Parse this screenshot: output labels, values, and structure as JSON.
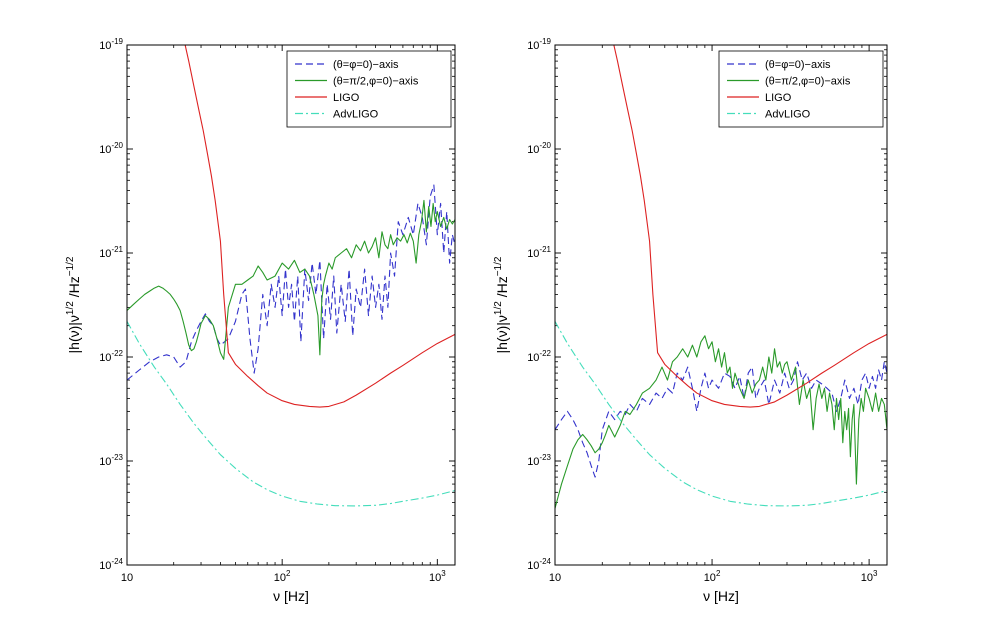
{
  "chart_data": [
    {
      "type": "line",
      "xscale": "log",
      "yscale": "log",
      "xlim": [
        10,
        1300
      ],
      "ylim": [
        1e-24,
        1e-19
      ],
      "xlabel": "ν [Hz]",
      "ylabel": "|h(ν)|ν^1/2 /Hz^−1/2",
      "xtick_labels": [
        "10",
        "10^2",
        "10^3"
      ],
      "ytick_labels": [
        "10^-19",
        "10^-20",
        "10^-21",
        "10^-22",
        "10^-23",
        "10^-24"
      ],
      "legend_position": "top-right",
      "series": [
        {
          "name": "(θ=φ=0)−axis",
          "color": "#3333cc",
          "style": "dashed",
          "x": [
            10,
            12,
            14,
            16,
            18,
            20,
            22,
            24,
            26,
            28,
            30,
            32,
            34,
            36,
            38,
            40,
            45,
            50,
            55,
            58,
            62,
            66,
            70,
            75,
            80,
            85,
            90,
            95,
            100,
            105,
            110,
            115,
            120,
            126,
            132,
            140,
            148,
            156,
            165,
            175,
            185,
            195,
            205,
            215,
            225,
            240,
            255,
            270,
            285,
            300,
            320,
            340,
            360,
            380,
            400,
            420,
            440,
            460,
            480,
            500,
            530,
            560,
            600,
            650,
            700,
            750,
            800,
            850,
            900,
            950,
            1000,
            1050,
            1100,
            1150,
            1200,
            1250,
            1300
          ],
          "y": [
            6e-23,
            7.5e-23,
            9e-23,
            1e-22,
            1.05e-22,
            1e-22,
            8e-23,
            9e-23,
            1.4e-22,
            1.8e-22,
            2.2e-22,
            2.6e-22,
            2.2e-22,
            2e-22,
            1.5e-22,
            1.3e-22,
            1.5e-22,
            2.2e-22,
            4e-22,
            4.5e-22,
            1.5e-22,
            7e-23,
            1.2e-22,
            4e-22,
            2e-22,
            5e-22,
            3e-22,
            6e-22,
            2.5e-22,
            7e-22,
            3e-22,
            5e-22,
            2.2e-22,
            6e-22,
            1.4e-22,
            7e-22,
            3.5e-22,
            8e-22,
            4e-22,
            8.5e-22,
            1.5e-22,
            5e-22,
            2.3e-22,
            6e-22,
            1.7e-22,
            5e-22,
            2.2e-22,
            7e-22,
            1.6e-22,
            4.5e-22,
            3e-22,
            7e-22,
            2.5e-22,
            6e-22,
            3e-22,
            5e-22,
            2.3e-22,
            6e-22,
            3e-22,
            1e-21,
            6e-22,
            2e-21,
            1.5e-21,
            2.2e-21,
            1.5e-21,
            3e-21,
            2.2e-21,
            1.2e-21,
            3.5e-21,
            4.5e-21,
            1.5e-21,
            3e-21,
            1e-21,
            2.5e-21,
            8e-22,
            1.5e-21,
            1.2e-21
          ]
        },
        {
          "name": "(θ=π/2,φ=0)−axis",
          "color": "#2a9a2a",
          "style": "solid",
          "x": [
            10,
            11,
            12,
            13,
            14,
            15,
            16,
            17,
            18,
            19,
            20,
            21,
            22,
            23,
            24,
            25,
            26,
            27,
            28,
            29,
            30,
            32,
            34,
            36,
            38,
            40,
            42,
            45,
            50,
            55,
            60,
            65,
            70,
            75,
            80,
            90,
            100,
            110,
            120,
            130,
            140,
            150,
            160,
            170,
            175,
            180,
            185,
            190,
            200,
            210,
            220,
            240,
            260,
            280,
            300,
            320,
            340,
            360,
            380,
            400,
            420,
            440,
            460,
            480,
            500,
            520,
            550,
            580,
            610,
            640,
            670,
            700,
            730,
            760,
            790,
            820,
            850,
            880,
            910,
            940,
            970,
            1000,
            1050,
            1100,
            1150,
            1200,
            1250,
            1300
          ],
          "y": [
            2.8e-22,
            3.2e-22,
            3.6e-22,
            4e-22,
            4.3e-22,
            4.6e-22,
            4.8e-22,
            4.6e-22,
            4.3e-22,
            4e-22,
            3.6e-22,
            3.2e-22,
            2.8e-22,
            2.2e-22,
            1.7e-22,
            1.3e-22,
            1.15e-22,
            1.2e-22,
            1.4e-22,
            1.7e-22,
            2.1e-22,
            2.5e-22,
            2.3e-22,
            2e-22,
            1.5e-22,
            1.1e-22,
            9.5e-23,
            3e-22,
            5e-22,
            5e-22,
            5.5e-22,
            6e-22,
            7.5e-22,
            6.5e-22,
            5.5e-22,
            6e-22,
            8e-22,
            7e-22,
            8.5e-22,
            6.5e-22,
            7e-22,
            6e-22,
            4e-22,
            2.5e-22,
            1.05e-22,
            3.5e-22,
            5e-22,
            6e-22,
            8e-22,
            7e-22,
            9e-22,
            1e-21,
            1.1e-21,
            9e-22,
            1.2e-21,
            1.05e-21,
            1.3e-21,
            1e-21,
            1.15e-21,
            1.4e-21,
            9e-22,
            1.6e-21,
            1.2e-21,
            1.1e-21,
            1.5e-21,
            1.2e-21,
            1.4e-21,
            1.3e-21,
            1.5e-21,
            1.25e-21,
            1.55e-21,
            1.3e-21,
            8e-22,
            1.5e-21,
            2e-21,
            3.2e-21,
            1.6e-21,
            2.8e-21,
            1.8e-21,
            3e-21,
            2e-21,
            2.5e-21,
            1.8e-21,
            2.2e-21,
            1.7e-21,
            2.1e-21,
            1.9e-21,
            2.1e-21
          ]
        },
        {
          "name": "LIGO",
          "color": "#dd2222",
          "style": "solid",
          "x": [
            23.7,
            25,
            27,
            29,
            31,
            33,
            35,
            37,
            40,
            42,
            45,
            50,
            60,
            70,
            80,
            100,
            120,
            150,
            175,
            200,
            250,
            300,
            400,
            500,
            600,
            800,
            1000,
            1300
          ],
          "y": [
            1e-19,
            7e-20,
            4e-20,
            2.4e-20,
            1.5e-20,
            9e-21,
            5.5e-21,
            3.2e-21,
            1.3e-21,
            4e-22,
            1.1e-22,
            8.5e-23,
            6.5e-23,
            5.3e-23,
            4.5e-23,
            3.8e-23,
            3.5e-23,
            3.35e-23,
            3.3e-23,
            3.35e-23,
            3.7e-23,
            4.3e-23,
            5.6e-23,
            7e-23,
            8.3e-23,
            1.1e-22,
            1.35e-22,
            1.65e-22
          ]
        },
        {
          "name": "AdvLIGO",
          "color": "#44ddbb",
          "style": "dashdot",
          "x": [
            10,
            12,
            15,
            18,
            22,
            27,
            33,
            40,
            50,
            65,
            80,
            100,
            130,
            170,
            220,
            300,
            400,
            500,
            600,
            800,
            1000,
            1300
          ],
          "y": [
            2.2e-22,
            1.35e-22,
            8e-23,
            5.5e-23,
            3.5e-23,
            2.3e-23,
            1.6e-23,
            1.15e-23,
            8.5e-24,
            6.3e-24,
            5.3e-24,
            4.6e-24,
            4.1e-24,
            3.85e-24,
            3.72e-24,
            3.7e-24,
            3.75e-24,
            3.9e-24,
            4.1e-24,
            4.4e-24,
            4.7e-24,
            5.2e-24
          ]
        }
      ]
    },
    {
      "type": "line",
      "xscale": "log",
      "yscale": "log",
      "xlim": [
        10,
        1300
      ],
      "ylim": [
        1e-24,
        1e-19
      ],
      "xlabel": "ν [Hz]",
      "ylabel": "|h(ν)|ν^1/2 /Hz^−1/2",
      "xtick_labels": [
        "10",
        "10^2",
        "10^3"
      ],
      "ytick_labels": [
        "10^-19",
        "10^-20",
        "10^-21",
        "10^-22",
        "10^-23",
        "10^-24"
      ],
      "legend_position": "top-right",
      "series": [
        {
          "name": "(θ=φ=0)−axis",
          "color": "#3333cc",
          "style": "dashed",
          "x": [
            10,
            11,
            12,
            13,
            14,
            15,
            16,
            17,
            18,
            19,
            20,
            22,
            24,
            26,
            28,
            30,
            33,
            36,
            40,
            44,
            48,
            52,
            56,
            60,
            65,
            70,
            75,
            80,
            85,
            90,
            95,
            100,
            110,
            120,
            130,
            140,
            150,
            160,
            170,
            180,
            190,
            200,
            215,
            230,
            250,
            270,
            290,
            310,
            330,
            350,
            375,
            400,
            430,
            460,
            500,
            540,
            580,
            620,
            660,
            700,
            750,
            800,
            850,
            900,
            950,
            1000,
            1050,
            1100,
            1150,
            1200,
            1250,
            1300
          ],
          "y": [
            2e-23,
            2.5e-23,
            3e-23,
            2.5e-23,
            2e-23,
            1.5e-23,
            1.2e-23,
            9e-24,
            7e-24,
            1e-23,
            2e-23,
            3e-23,
            2.5e-23,
            3e-23,
            2.8e-23,
            3.5e-23,
            3e-23,
            4e-23,
            3.5e-23,
            4.5e-23,
            4e-23,
            5e-23,
            4.5e-23,
            7e-23,
            6e-23,
            8e-23,
            5e-23,
            3e-23,
            5e-23,
            7e-23,
            5e-23,
            6e-23,
            5e-23,
            7e-23,
            6.5e-23,
            5e-23,
            6.5e-23,
            4e-23,
            7e-23,
            8e-23,
            4e-23,
            5e-23,
            6e-23,
            3.5e-23,
            6e-23,
            4.5e-23,
            7e-23,
            5e-23,
            6e-23,
            9e-23,
            6e-23,
            7e-23,
            5e-23,
            6e-23,
            5.5e-23,
            5e-23,
            4.5e-23,
            3e-23,
            4e-23,
            6e-23,
            4e-23,
            5e-23,
            3.5e-23,
            6e-23,
            7e-23,
            5e-23,
            6.5e-23,
            5e-23,
            7.5e-23,
            6e-23,
            9e-23,
            7e-23
          ]
        },
        {
          "name": "(θ=π/2,φ=0)−axis",
          "color": "#2a9a2a",
          "style": "solid",
          "x": [
            10,
            11,
            12,
            13,
            14,
            15,
            16,
            17,
            18,
            19,
            20,
            21,
            22,
            24,
            26,
            28,
            30,
            33,
            36,
            40,
            44,
            48,
            52,
            56,
            60,
            65,
            70,
            75,
            80,
            85,
            90,
            95,
            100,
            105,
            110,
            115,
            120,
            125,
            130,
            135,
            140,
            150,
            160,
            170,
            180,
            190,
            200,
            210,
            220,
            230,
            240,
            250,
            260,
            270,
            280,
            290,
            300,
            320,
            340,
            360,
            380,
            400,
            420,
            440,
            460,
            480,
            500,
            520,
            540,
            560,
            580,
            600,
            620,
            640,
            660,
            680,
            700,
            720,
            740,
            760,
            780,
            800,
            830,
            860,
            890,
            920,
            950,
            1000,
            1050,
            1100,
            1150,
            1200,
            1250,
            1300
          ],
          "y": [
            3.5e-24,
            6e-24,
            9e-24,
            1.3e-23,
            1.6e-23,
            1.8e-23,
            1.6e-23,
            1.4e-23,
            1.2e-23,
            1.3e-23,
            1.5e-23,
            1.8e-23,
            2.2e-23,
            1.7e-23,
            2.2e-23,
            3e-23,
            2.8e-23,
            3.5e-23,
            4.5e-23,
            5e-23,
            6e-23,
            8e-23,
            6e-23,
            9e-23,
            1e-22,
            1.2e-22,
            1e-22,
            1.3e-22,
            1e-22,
            1.4e-22,
            1.6e-22,
            1.2e-22,
            1.4e-22,
            9e-23,
            1.2e-22,
            8e-23,
            1.1e-22,
            7e-23,
            8e-23,
            5e-23,
            7e-23,
            5e-23,
            4e-23,
            6e-23,
            4.5e-23,
            5.5e-23,
            6e-23,
            8e-23,
            6e-23,
            1e-22,
            7e-23,
            1.2e-22,
            8e-23,
            9e-23,
            7e-23,
            8.5e-23,
            9e-23,
            6e-23,
            8e-23,
            3.5e-23,
            6e-23,
            4e-23,
            5e-23,
            2e-23,
            4e-23,
            5.5e-23,
            4e-23,
            5e-23,
            3e-23,
            4.5e-23,
            3.5e-23,
            2e-23,
            4e-23,
            2.5e-23,
            4e-23,
            1.5e-23,
            3e-23,
            2e-23,
            3.2e-23,
            1.1e-23,
            2.5e-23,
            3.5e-23,
            6e-24,
            2.5e-23,
            4e-23,
            3e-23,
            5e-23,
            4e-23,
            3e-23,
            4.5e-23,
            3e-23,
            4e-23,
            3.5e-23,
            2e-23
          ]
        },
        {
          "name": "LIGO",
          "color": "#dd2222",
          "style": "solid",
          "x": [
            23.7,
            25,
            27,
            29,
            31,
            33,
            35,
            37,
            40,
            42,
            45,
            50,
            60,
            70,
            80,
            100,
            120,
            150,
            175,
            200,
            250,
            300,
            400,
            500,
            600,
            800,
            1000,
            1300
          ],
          "y": [
            1e-19,
            7e-20,
            4e-20,
            2.4e-20,
            1.5e-20,
            9e-21,
            5.5e-21,
            3.2e-21,
            1.3e-21,
            4e-22,
            1.1e-22,
            8.5e-23,
            6.5e-23,
            5.3e-23,
            4.5e-23,
            3.8e-23,
            3.5e-23,
            3.35e-23,
            3.3e-23,
            3.35e-23,
            3.7e-23,
            4.3e-23,
            5.6e-23,
            7e-23,
            8.3e-23,
            1.1e-22,
            1.35e-22,
            1.65e-22
          ]
        },
        {
          "name": "AdvLIGO",
          "color": "#44ddbb",
          "style": "dashdot",
          "x": [
            10,
            12,
            15,
            18,
            22,
            27,
            33,
            40,
            50,
            65,
            80,
            100,
            130,
            170,
            220,
            300,
            400,
            500,
            600,
            800,
            1000,
            1300
          ],
          "y": [
            2.2e-22,
            1.35e-22,
            8e-23,
            5.5e-23,
            3.5e-23,
            2.3e-23,
            1.6e-23,
            1.15e-23,
            8.5e-24,
            6.3e-24,
            5.3e-24,
            4.6e-24,
            4.1e-24,
            3.85e-24,
            3.72e-24,
            3.7e-24,
            3.75e-24,
            3.9e-24,
            4.1e-24,
            4.4e-24,
            4.7e-24,
            5.2e-24
          ]
        }
      ]
    }
  ]
}
